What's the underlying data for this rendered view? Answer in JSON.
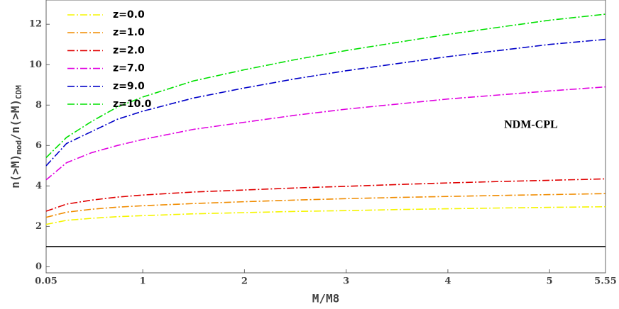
{
  "chart_data": {
    "type": "line",
    "xlabel": "M/M8",
    "ylabel_parts": [
      "n(>M)",
      "mod",
      "/n(>M)",
      "CDM"
    ],
    "annotation": "NDM-CPL",
    "x": [
      0.05,
      0.25,
      0.5,
      0.75,
      1,
      1.5,
      2,
      2.5,
      3,
      3.5,
      4,
      4.5,
      5,
      5.55
    ],
    "series": [
      {
        "name": "z=0.0",
        "color": "#f5f500",
        "values": [
          2.1,
          2.3,
          2.4,
          2.48,
          2.53,
          2.62,
          2.68,
          2.74,
          2.78,
          2.83,
          2.87,
          2.91,
          2.94,
          2.97
        ]
      },
      {
        "name": "z=1.0",
        "color": "#f08c00",
        "values": [
          2.45,
          2.7,
          2.85,
          2.95,
          3.02,
          3.13,
          3.22,
          3.3,
          3.37,
          3.43,
          3.48,
          3.53,
          3.57,
          3.62
        ]
      },
      {
        "name": "z=2.0",
        "color": "#e00000",
        "values": [
          2.75,
          3.1,
          3.3,
          3.45,
          3.55,
          3.7,
          3.8,
          3.9,
          3.98,
          4.07,
          4.15,
          4.22,
          4.28,
          4.35
        ]
      },
      {
        "name": "z=7.0",
        "color": "#e000e0",
        "values": [
          4.3,
          5.15,
          5.65,
          6.0,
          6.3,
          6.8,
          7.15,
          7.5,
          7.8,
          8.05,
          8.3,
          8.5,
          8.7,
          8.9
        ]
      },
      {
        "name": "z=9.0",
        "color": "#0000c8",
        "values": [
          5.0,
          6.1,
          6.7,
          7.3,
          7.7,
          8.35,
          8.85,
          9.3,
          9.7,
          10.05,
          10.4,
          10.7,
          11.0,
          11.25
        ]
      },
      {
        "name": "z=10.0",
        "color": "#00e000",
        "values": [
          5.4,
          6.4,
          7.2,
          7.9,
          8.4,
          9.2,
          9.75,
          10.25,
          10.7,
          11.1,
          11.5,
          11.85,
          12.2,
          12.5
        ]
      }
    ],
    "reference_line": 1,
    "xlim": [
      0.05,
      5.55
    ],
    "ylim": [
      -0.3,
      13.2
    ],
    "xticks": [
      0.05,
      1,
      2,
      3,
      4,
      5,
      5.55
    ],
    "yticks": [
      0,
      2,
      4,
      6,
      8,
      10,
      12
    ],
    "legend": "upper left"
  }
}
